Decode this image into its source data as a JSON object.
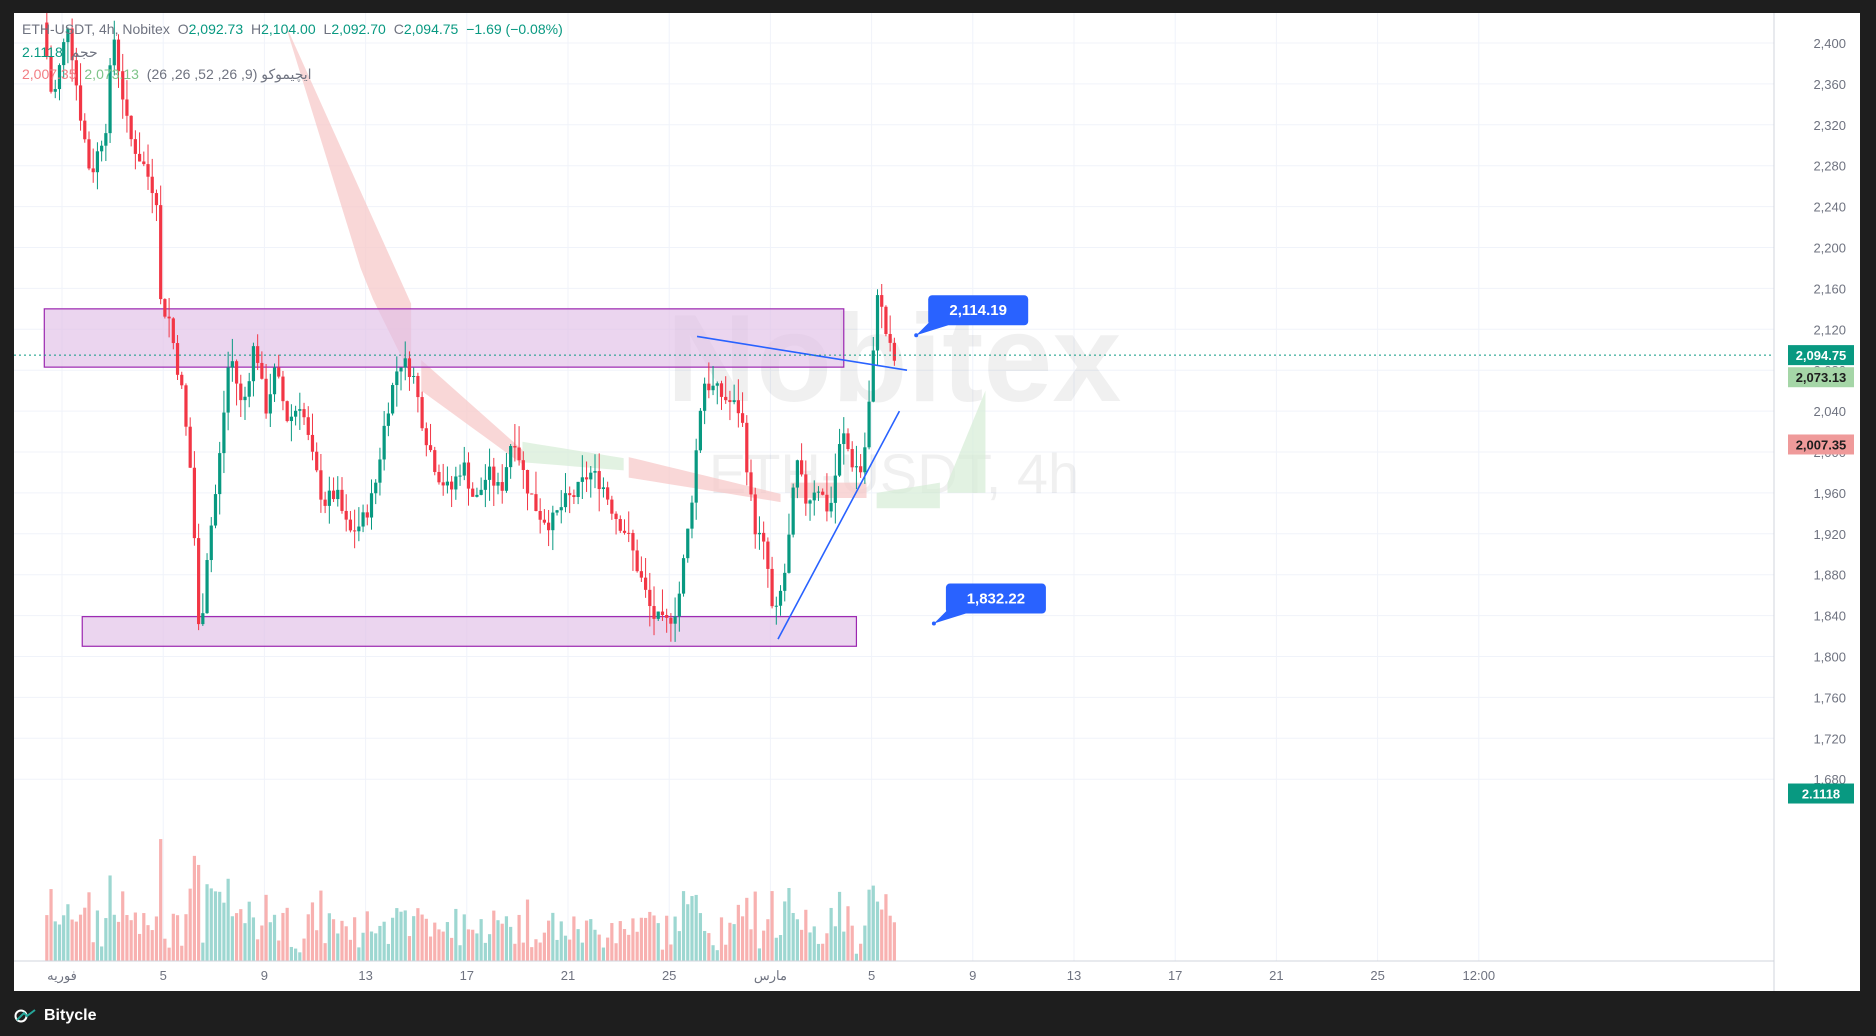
{
  "legend": {
    "symbol": "ETH-USDT, 4h, Nobitex",
    "o_label": "O",
    "o_value": "2,092.73",
    "h_label": "H",
    "h_value": "2,104.00",
    "l_label": "L",
    "l_value": "2,092.70",
    "c_label": "C",
    "c_value": "2,094.75",
    "change": "−1.69 (−0.08%)",
    "volume_label": "حجم",
    "volume_value": "2.1118",
    "ichimoku_label": "ایچیموکو (9, 26, 52, 26, 26)",
    "ichimoku_a": "2,073.13",
    "ichimoku_b": "2,007.35"
  },
  "watermark": {
    "brand": "Nobitex",
    "sub": "ETH-USDT, 4h"
  },
  "footer": {
    "brand": "Bitycle"
  },
  "colors": {
    "up": "#089981",
    "down": "#f23645",
    "zone_fill": "#e1bee7",
    "zone_stroke": "#9c27b0",
    "trendline": "#2962ff",
    "callout": "#2962ff",
    "cloud_red": "#f7c6c6",
    "cloud_green": "#d6ecd6"
  },
  "chart_data": {
    "type": "candlestick",
    "symbol": "ETH-USDT",
    "timeframe": "4h",
    "ylim": [
      1660,
      2420
    ],
    "y_ticks": [
      1680,
      1720,
      1760,
      1800,
      1840,
      1880,
      1920,
      1960,
      2000,
      2040,
      2080,
      2120,
      2160,
      2200,
      2240,
      2280,
      2320,
      2360,
      2400
    ],
    "x_range_days": [
      -4.1,
      53.8
    ],
    "x_ticks": [
      {
        "day": 0,
        "label": "فوریه"
      },
      {
        "day": 4,
        "label": "5"
      },
      {
        "day": 8,
        "label": "9"
      },
      {
        "day": 12,
        "label": "13"
      },
      {
        "day": 16,
        "label": "17"
      },
      {
        "day": 20,
        "label": "21"
      },
      {
        "day": 24,
        "label": "25"
      },
      {
        "day": 28,
        "label": "مارس"
      },
      {
        "day": 32,
        "label": "5"
      },
      {
        "day": 36,
        "label": "9"
      },
      {
        "day": 40,
        "label": "13"
      },
      {
        "day": 44,
        "label": "17"
      },
      {
        "day": 48,
        "label": "21"
      },
      {
        "day": 52,
        "label": "25"
      },
      {
        "day": 56,
        "label": "12:00"
      }
    ],
    "close_path": [
      [
        -0.6,
        2420
      ],
      [
        -0.2,
        2340
      ],
      [
        0.4,
        2420
      ],
      [
        0.9,
        2330
      ],
      [
        1.3,
        2270
      ],
      [
        1.9,
        2320
      ],
      [
        2.2,
        2410
      ],
      [
        2.8,
        2310
      ],
      [
        3.4,
        2280
      ],
      [
        3.9,
        2250
      ],
      [
        4.0,
        2150
      ],
      [
        4.4,
        2130
      ],
      [
        4.9,
        2060
      ],
      [
        5.3,
        1970
      ],
      [
        5.6,
        1810
      ],
      [
        5.9,
        1900
      ],
      [
        6.3,
        1970
      ],
      [
        6.8,
        2100
      ],
      [
        7.3,
        2040
      ],
      [
        7.8,
        2110
      ],
      [
        8.2,
        2040
      ],
      [
        8.6,
        2080
      ],
      [
        9.1,
        2030
      ],
      [
        9.6,
        2050
      ],
      [
        10.0,
        2000
      ],
      [
        10.5,
        1950
      ],
      [
        11.0,
        1960
      ],
      [
        11.5,
        1920
      ],
      [
        12.0,
        1930
      ],
      [
        12.5,
        1960
      ],
      [
        13.0,
        2040
      ],
      [
        13.5,
        2090
      ],
      [
        14.0,
        2080
      ],
      [
        14.5,
        2020
      ],
      [
        15.0,
        1980
      ],
      [
        15.5,
        1960
      ],
      [
        16.0,
        1990
      ],
      [
        16.5,
        1950
      ],
      [
        17.0,
        1980
      ],
      [
        17.5,
        1960
      ],
      [
        18.0,
        2020
      ],
      [
        18.5,
        1970
      ],
      [
        19.0,
        1940
      ],
      [
        19.5,
        1930
      ],
      [
        20.0,
        1950
      ],
      [
        20.5,
        1960
      ],
      [
        21.0,
        1980
      ],
      [
        21.5,
        1970
      ],
      [
        22.0,
        1940
      ],
      [
        22.5,
        1920
      ],
      [
        23.0,
        1880
      ],
      [
        23.5,
        1840
      ],
      [
        24.0,
        1830
      ],
      [
        24.5,
        1850
      ],
      [
        25.0,
        1940
      ],
      [
        25.5,
        2070
      ],
      [
        26.0,
        2060
      ],
      [
        26.5,
        2050
      ],
      [
        27.0,
        2040
      ],
      [
        27.5,
        1930
      ],
      [
        28.0,
        1900
      ],
      [
        28.3,
        1830
      ],
      [
        28.8,
        1890
      ],
      [
        29.2,
        1990
      ],
      [
        29.6,
        1950
      ],
      [
        30.0,
        1970
      ],
      [
        30.5,
        1940
      ],
      [
        31.0,
        2020
      ],
      [
        31.4,
        1990
      ],
      [
        31.8,
        1980
      ],
      [
        32.2,
        2080
      ],
      [
        32.4,
        2160
      ],
      [
        32.7,
        2120
      ],
      [
        33.0,
        2090
      ]
    ],
    "volume_baseline": 2.1118,
    "ichimoku": {
      "span_a_last": 2073.13,
      "span_b_last": 2007.35
    },
    "zones": [
      {
        "from_day": -0.7,
        "to_day": 30.9,
        "low": 2083,
        "high": 2140
      },
      {
        "from_day": 0.8,
        "to_day": 31.4,
        "low": 1810,
        "high": 1839
      }
    ],
    "trendlines": [
      {
        "from": [
          25.1,
          2113
        ],
        "to": [
          33.4,
          2080
        ]
      },
      {
        "from": [
          28.3,
          1817
        ],
        "to": [
          33.1,
          2040
        ]
      }
    ],
    "callouts": [
      {
        "label": "2,114.19",
        "value": 2114.19,
        "day": 34.0
      },
      {
        "label": "1,832.22",
        "value": 1832.22,
        "day": 34.7
      }
    ],
    "last_price": {
      "label": "2,094.75",
      "value": 2094.75
    },
    "axis_badges": [
      {
        "label": "2,094.75",
        "value": 2094.75,
        "color": "#089981"
      },
      {
        "label": "2,073.13",
        "value": 2073.13,
        "color": "#a5d6a7"
      },
      {
        "label": "2,007.35",
        "value": 2007.35,
        "color": "#ef9a9a"
      },
      {
        "label": "2.1118",
        "value": 1666,
        "color": "#089981"
      }
    ]
  }
}
